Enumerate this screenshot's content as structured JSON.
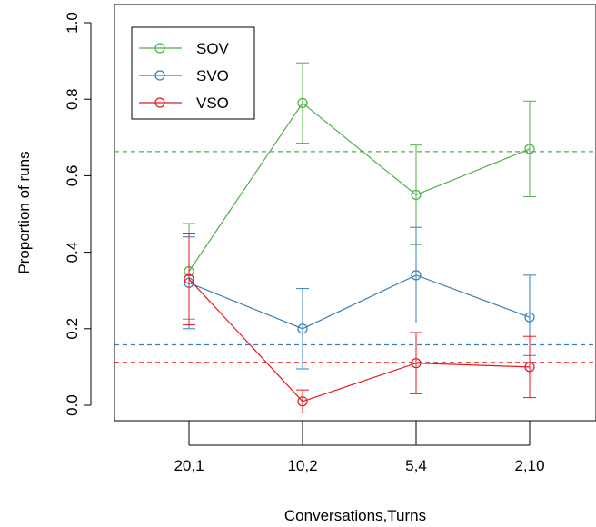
{
  "chart_data": {
    "type": "line",
    "xlabel": "Conversations,Turns",
    "ylabel": "Proportion of runs",
    "categories": [
      "20,1",
      "10,2",
      "5,4",
      "2,10"
    ],
    "ylim": [
      -0.05,
      1.0
    ],
    "yticks": [
      "0.0",
      "0.2",
      "0.4",
      "0.6",
      "0.8",
      "1.0"
    ],
    "legend_position": "top-left",
    "grid": false,
    "series": [
      {
        "name": "SOV",
        "color": "#4daf4a",
        "values": [
          0.35,
          0.79,
          0.55,
          0.67
        ],
        "err_low": [
          0.225,
          0.685,
          0.42,
          0.545
        ],
        "err_high": [
          0.475,
          0.895,
          0.68,
          0.795
        ],
        "reference": 0.663
      },
      {
        "name": "SVO",
        "color": "#377eb8",
        "values": [
          0.32,
          0.2,
          0.34,
          0.23
        ],
        "err_low": [
          0.2,
          0.095,
          0.215,
          0.13
        ],
        "err_high": [
          0.44,
          0.305,
          0.465,
          0.34
        ],
        "reference": 0.158
      },
      {
        "name": "VSO",
        "color": "#e41a1c",
        "values": [
          0.33,
          0.01,
          0.11,
          0.1
        ],
        "err_low": [
          0.21,
          -0.02,
          0.03,
          0.02
        ],
        "err_high": [
          0.45,
          0.04,
          0.19,
          0.18
        ],
        "reference": 0.112
      }
    ]
  }
}
